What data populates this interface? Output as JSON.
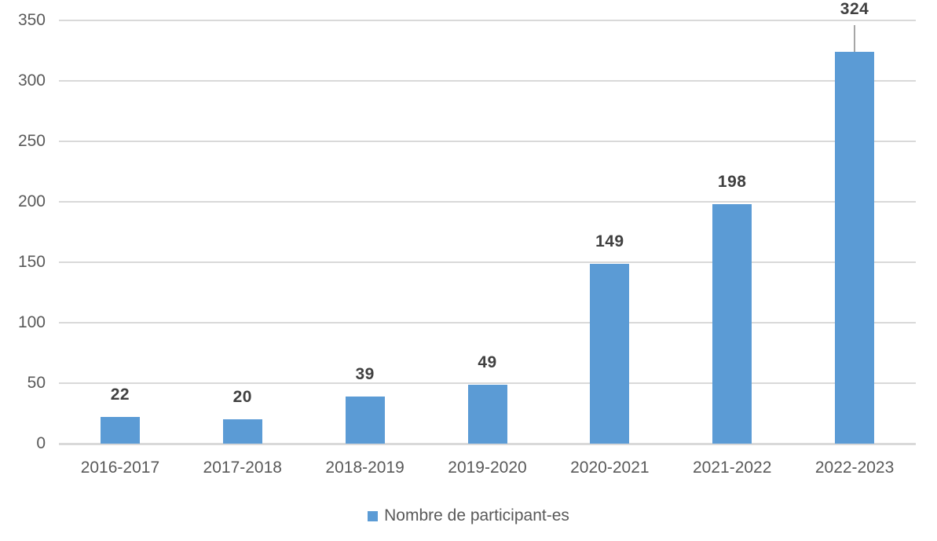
{
  "chart_data": {
    "type": "bar",
    "title": "",
    "xlabel": "",
    "ylabel": "",
    "categories": [
      "2016-2017",
      "2017-2018",
      "2018-2019",
      "2019-2020",
      "2020-2021",
      "2021-2022",
      "2022-2023"
    ],
    "values": [
      22,
      20,
      39,
      49,
      149,
      198,
      324
    ],
    "data_labels": [
      "22",
      "20",
      "39",
      "49",
      "149",
      "198",
      "324"
    ],
    "ylim": [
      0,
      350
    ],
    "yticks": [
      0,
      50,
      100,
      150,
      200,
      250,
      300,
      350
    ],
    "grid": "horizontal",
    "legend": {
      "label": "Nombre de participant-es",
      "position": "bottom"
    },
    "moved_labels": [
      {
        "index": 6,
        "center_y": 12,
        "leader": true
      }
    ],
    "colors": {
      "bar": "#5B9BD5",
      "gridline": "#D9D9D9",
      "axis_line": "#D9D9D9",
      "tick_label": "#595959",
      "data_label": "#404040",
      "leader_line": "#A6A6A6",
      "legend_text": "#595959",
      "background": "#FFFFFF"
    }
  }
}
